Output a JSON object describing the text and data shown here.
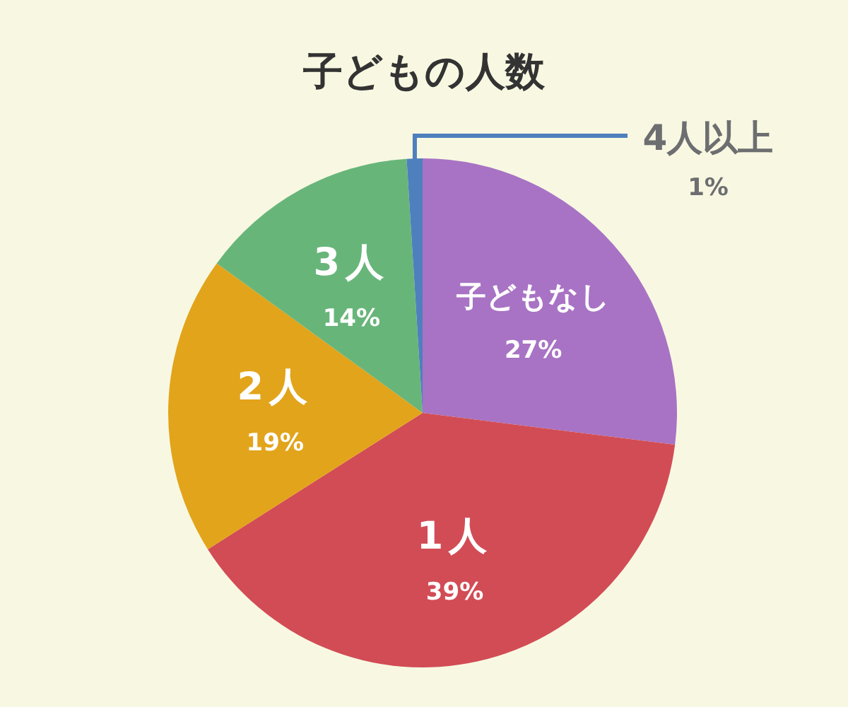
{
  "chart_data": {
    "type": "pie",
    "title": "子どもの人数",
    "categories": [
      "子どもなし",
      "1人",
      "2人",
      "3人",
      "4人以上"
    ],
    "values": [
      27,
      39,
      19,
      14,
      1
    ],
    "value_labels": [
      "27%",
      "39%",
      "19%",
      "14%",
      "1%"
    ],
    "colors": [
      "#a873c4",
      "#d24c55",
      "#e2a41b",
      "#68b57a",
      "#4e80bd"
    ]
  }
}
